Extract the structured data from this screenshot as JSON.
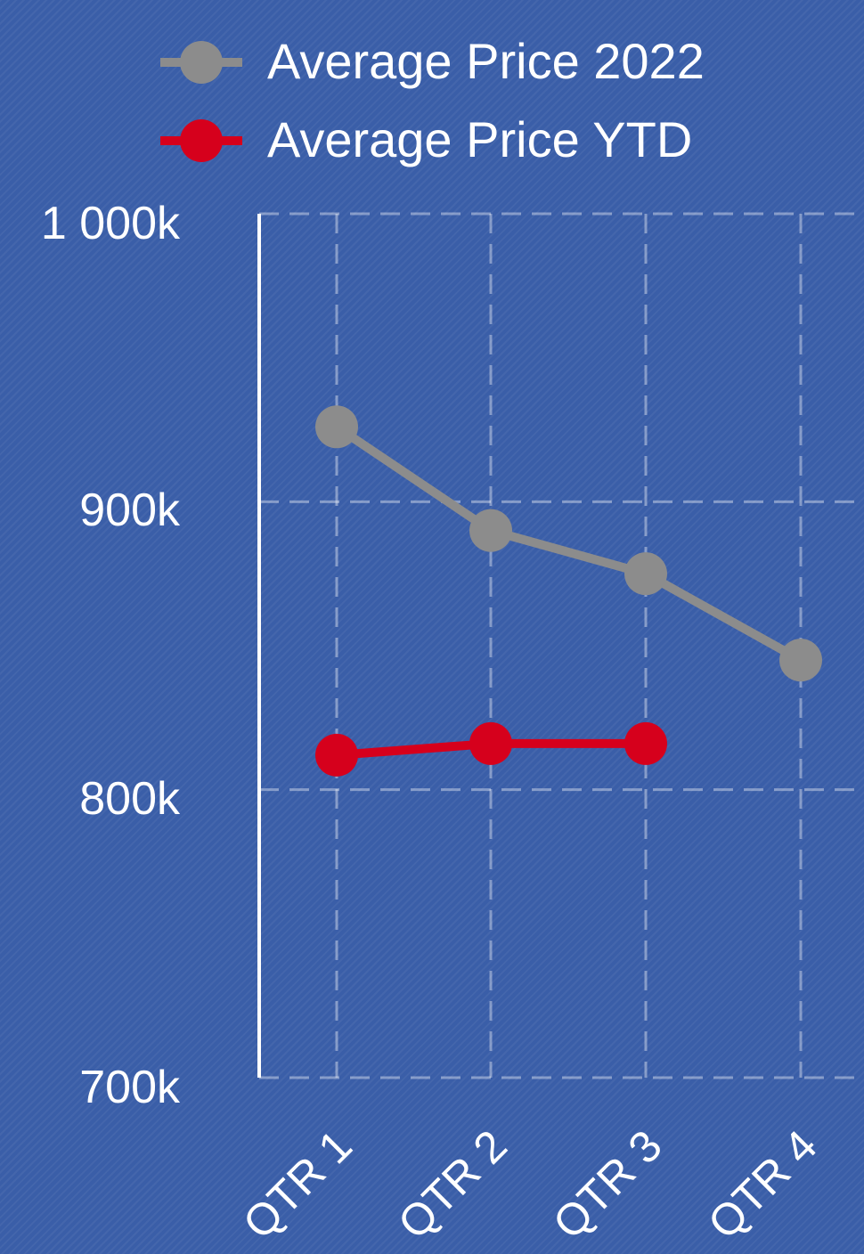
{
  "chart_data": {
    "type": "line",
    "categories": [
      "QTR 1",
      "QTR 2",
      "QTR 3",
      "QTR 4"
    ],
    "series": [
      {
        "name": "Average Price 2022",
        "values": [
          926000,
          890000,
          875000,
          845000
        ],
        "color": "#8c8c8c"
      },
      {
        "name": "Average Price YTD",
        "values": [
          812000,
          816000,
          816000,
          null
        ],
        "color": "#d6001c"
      }
    ],
    "yticks": [
      "1 000k",
      "900k",
      "800k",
      "700k"
    ],
    "ylim": [
      700000,
      1000000
    ],
    "grid": true,
    "legend": "top"
  }
}
